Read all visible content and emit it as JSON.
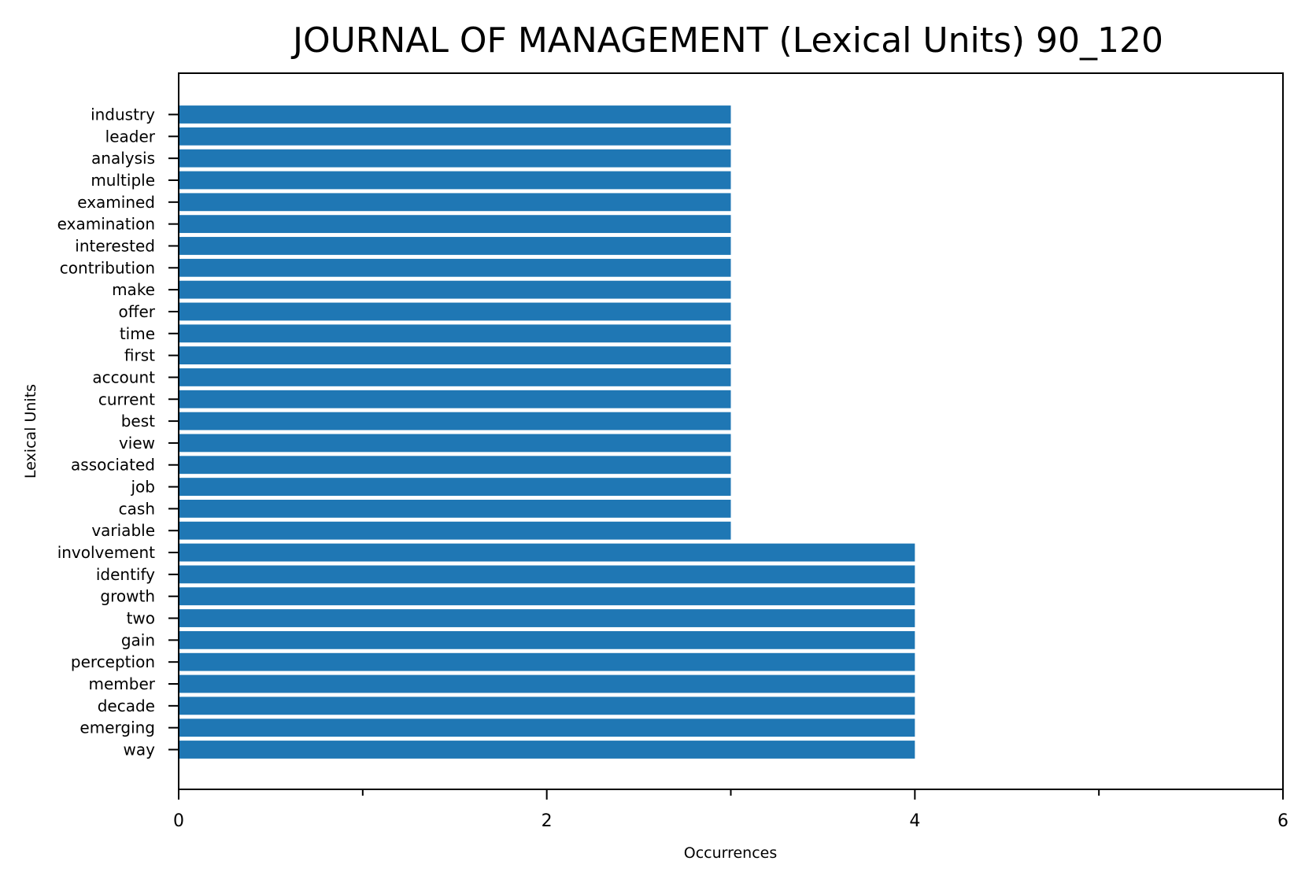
{
  "chart_data": {
    "type": "bar",
    "orientation": "horizontal",
    "title": "JOURNAL OF MANAGEMENT (Lexical Units) 90_120",
    "xlabel": "Occurrences",
    "ylabel": "Lexical Units",
    "xlim": [
      0,
      6
    ],
    "xticks": [
      0,
      2,
      4,
      6
    ],
    "x_minor_ticks": [
      1,
      3,
      5
    ],
    "grid": false,
    "bar_color": "#1f77b4",
    "categories": [
      "industry",
      "leader",
      "analysis",
      "multiple",
      "examined",
      "examination",
      "interested",
      "contribution",
      "make",
      "offer",
      "time",
      "first",
      "account",
      "current",
      "best",
      "view",
      "associated",
      "job",
      "cash",
      "variable",
      "involvement",
      "identify",
      "growth",
      "two",
      "gain",
      "perception",
      "member",
      "decade",
      "emerging",
      "way"
    ],
    "values": [
      3,
      3,
      3,
      3,
      3,
      3,
      3,
      3,
      3,
      3,
      3,
      3,
      3,
      3,
      3,
      3,
      3,
      3,
      3,
      3,
      4,
      4,
      4,
      4,
      4,
      4,
      4,
      4,
      4,
      4
    ]
  }
}
